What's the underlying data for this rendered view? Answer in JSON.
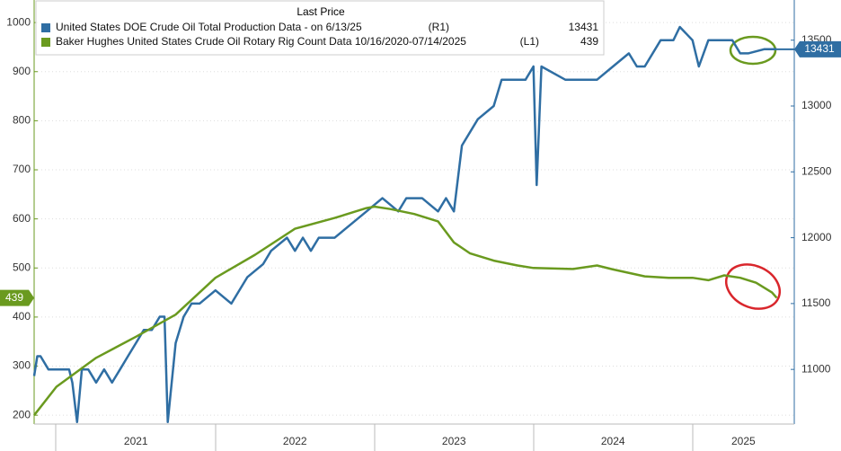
{
  "chart_data": {
    "type": "line",
    "legend_title": "Last Price",
    "xlim": [
      2020.86,
      2025.64
    ],
    "xticks": [
      {
        "value": 2021.5,
        "label": "2021"
      },
      {
        "value": 2022.5,
        "label": "2022"
      },
      {
        "value": 2023.5,
        "label": "2023"
      },
      {
        "value": 2024.5,
        "label": "2024"
      },
      {
        "value": 2025.32,
        "label": "2025"
      }
    ],
    "ylim": [
      182,
      1046
    ],
    "yticks": [
      200,
      300,
      400,
      500,
      600,
      700,
      800,
      900,
      1000
    ],
    "y2lim": [
      10585,
      13805
    ],
    "y2ticks": [
      11000,
      11500,
      12000,
      12500,
      13000,
      13500
    ],
    "grid": true,
    "series": [
      {
        "name": "United States DOE Crude Oil Total Production Data -  on 6/13/25",
        "axis_note": "(R1)",
        "last_value": 13431,
        "color": "#2f6ea3",
        "axis": "y2",
        "x": [
          2020.86,
          2020.88,
          2020.9,
          2020.95,
          2021.0,
          2021.08,
          2021.1,
          2021.13,
          2021.16,
          2021.2,
          2021.25,
          2021.3,
          2021.35,
          2021.4,
          2021.45,
          2021.5,
          2021.55,
          2021.6,
          2021.65,
          2021.68,
          2021.7,
          2021.75,
          2021.8,
          2021.85,
          2021.9,
          2022.0,
          2022.1,
          2022.2,
          2022.3,
          2022.35,
          2022.45,
          2022.5,
          2022.55,
          2022.6,
          2022.65,
          2022.75,
          2022.85,
          2022.95,
          2023.05,
          2023.15,
          2023.2,
          2023.3,
          2023.4,
          2023.45,
          2023.5,
          2023.55,
          2023.65,
          2023.75,
          2023.8,
          2023.95,
          2024.0,
          2024.02,
          2024.05,
          2024.2,
          2024.4,
          2024.5,
          2024.6,
          2024.65,
          2024.7,
          2024.8,
          2024.88,
          2024.92,
          2025.0,
          2025.04,
          2025.1,
          2025.25,
          2025.3,
          2025.35,
          2025.45,
          2025.53
        ],
        "values": [
          10950,
          11100,
          11100,
          11000,
          11000,
          11000,
          10900,
          10600,
          11000,
          11000,
          10900,
          11000,
          10900,
          11000,
          11100,
          11200,
          11300,
          11300,
          11400,
          11400,
          10600,
          11200,
          11400,
          11500,
          11500,
          11600,
          11500,
          11700,
          11800,
          11900,
          12000,
          11900,
          12000,
          11900,
          12000,
          12000,
          12100,
          12200,
          12300,
          12200,
          12300,
          12300,
          12200,
          12300,
          12200,
          12700,
          12900,
          13000,
          13200,
          13200,
          13300,
          12400,
          13300,
          13200,
          13200,
          13300,
          13400,
          13300,
          13300,
          13500,
          13500,
          13600,
          13500,
          13300,
          13500,
          13500,
          13400,
          13400,
          13431,
          13431
        ]
      },
      {
        "name": "Baker Hughes United States Crude Oil Rotary Rig Count Data 10/16/2020-07/14/2025",
        "axis_note": "(L1)",
        "last_value": 439,
        "color": "#6a9a1f",
        "axis": "y",
        "x": [
          2020.86,
          2021.0,
          2021.25,
          2021.5,
          2021.75,
          2022.0,
          2022.25,
          2022.5,
          2022.75,
          2022.95,
          2023.0,
          2023.1,
          2023.25,
          2023.4,
          2023.5,
          2023.6,
          2023.75,
          2023.9,
          2024.0,
          2024.25,
          2024.4,
          2024.5,
          2024.7,
          2024.85,
          2025.0,
          2025.1,
          2025.2,
          2025.3,
          2025.4,
          2025.5,
          2025.53
        ],
        "values": [
          200,
          258,
          317,
          360,
          405,
          480,
          527,
          580,
          602,
          622,
          625,
          620,
          610,
          595,
          552,
          530,
          515,
          505,
          500,
          498,
          505,
          497,
          483,
          480,
          480,
          475,
          485,
          480,
          470,
          450,
          439
        ]
      }
    ]
  }
}
